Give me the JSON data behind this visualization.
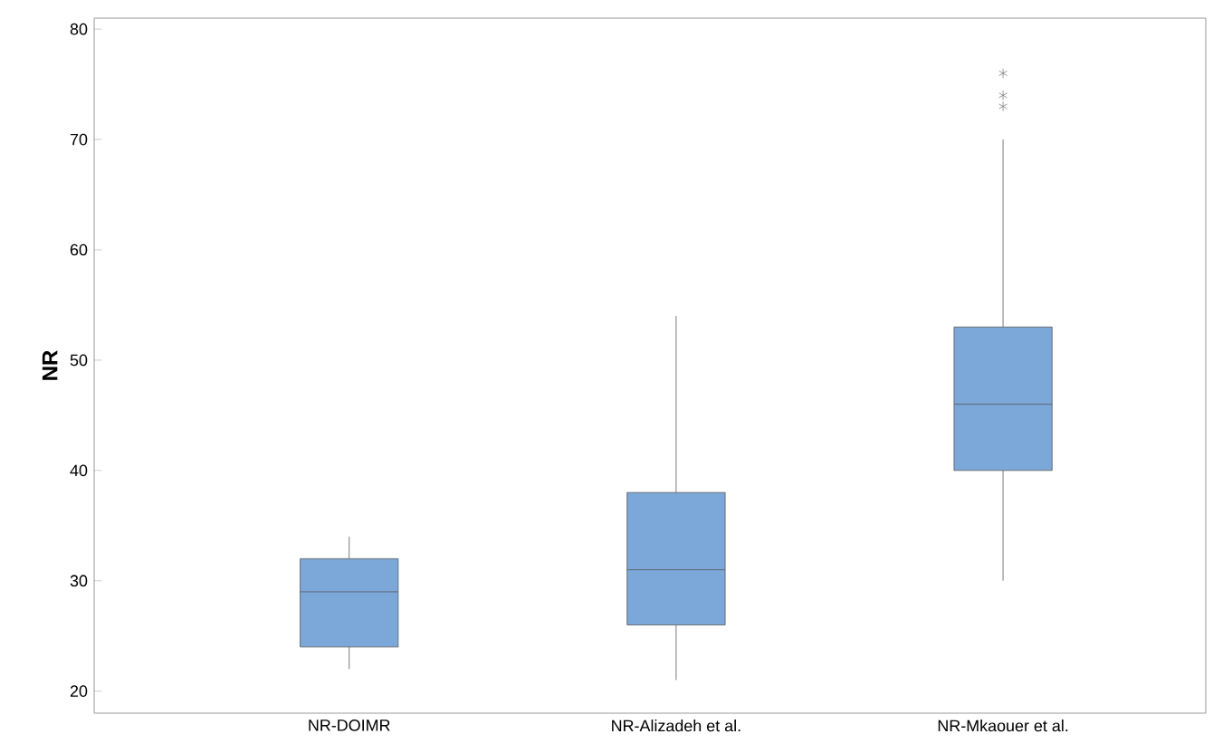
{
  "chart_data": {
    "type": "box",
    "ylabel": "NR",
    "categories": [
      "NR-DOIMR",
      "NR-Alizadeh et al.",
      "NR-Mkaouer et al."
    ],
    "boxes": [
      {
        "low": 22,
        "q1": 24,
        "median": 29,
        "q3": 32,
        "high": 34
      },
      {
        "low": 21,
        "q1": 26,
        "median": 31,
        "q3": 38,
        "high": 54
      },
      {
        "low": 30,
        "q1": 40,
        "median": 46,
        "q3": 53,
        "high": 70,
        "outliers": [
          76,
          74,
          73
        ]
      }
    ],
    "color": "#7ba7d9",
    "marker": "star",
    "ylim": [
      18,
      81
    ],
    "yticks": [
      20,
      30,
      40,
      50,
      60,
      70,
      80
    ],
    "grid": false
  }
}
